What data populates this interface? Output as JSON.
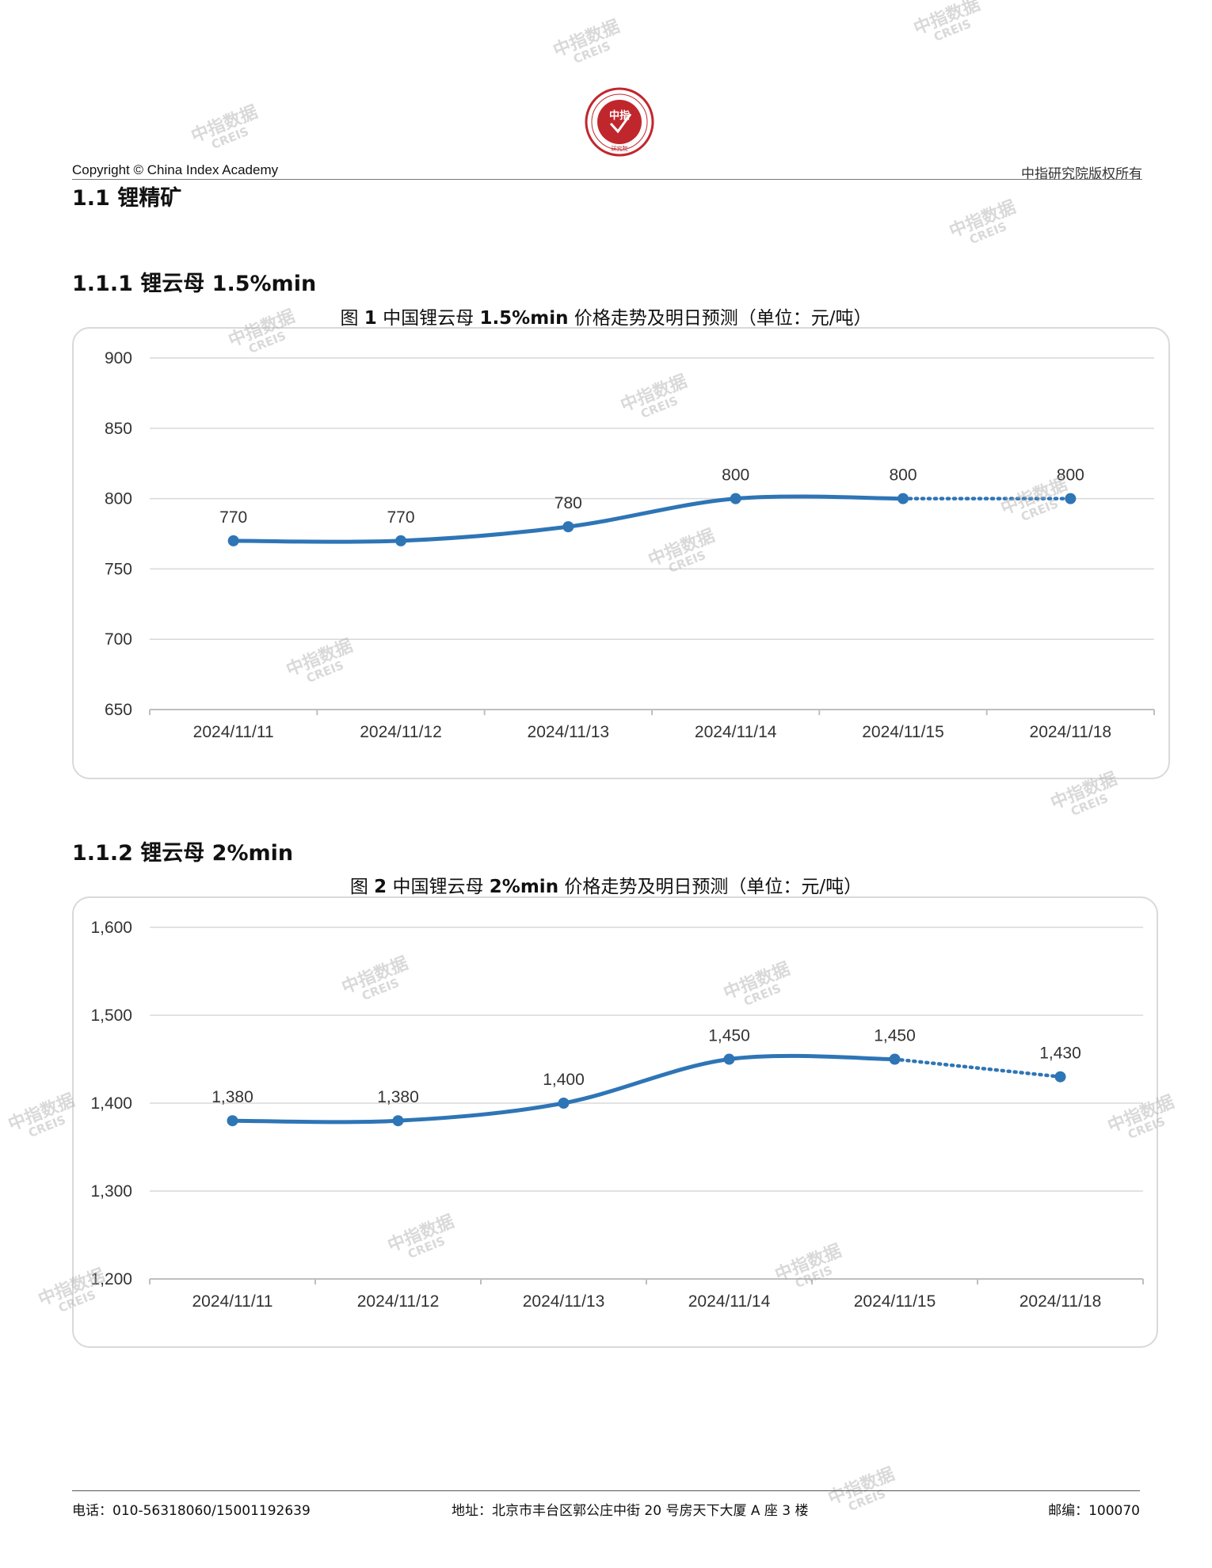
{
  "header": {
    "copyright": "Copyright © China Index Academy",
    "rights": "中指研究院版权所有",
    "logo_text": "CHINA INDEX ACADEMY",
    "logo_center": "中指",
    "logo_bottom": "研究院"
  },
  "section": {
    "title": "1.1 锂精矿"
  },
  "charts": [
    {
      "subsection": "1.1.1 锂云母 1.5%min",
      "title_prefix": "图 ",
      "title_num": "1",
      "title_mid": " 中国锂云母 ",
      "title_bold": "1.5%min",
      "title_rest": " 价格走势及明日预测（单位：元/吨）"
    },
    {
      "subsection": "1.1.2 锂云母 2%min",
      "title_prefix": "图 ",
      "title_num": "2",
      "title_mid": " 中国锂云母 ",
      "title_bold": "2%min",
      "title_rest": " 价格走势及明日预测（单位：元/吨）"
    }
  ],
  "chart_data": [
    {
      "type": "line",
      "title": "图 1 中国锂云母 1.5%min 价格走势及明日预测（单位：元/吨）",
      "categories": [
        "2024/11/11",
        "2024/11/12",
        "2024/11/13",
        "2024/11/14",
        "2024/11/15",
        "2024/11/18"
      ],
      "values": [
        770,
        770,
        780,
        800,
        800,
        800
      ],
      "data_labels": [
        "770",
        "770",
        "780",
        "800",
        "800",
        "800"
      ],
      "forecast_from_index": 4,
      "ylim": [
        650,
        900
      ],
      "yticks": [
        650,
        700,
        750,
        800,
        850,
        900
      ],
      "ytick_labels": [
        "650",
        "700",
        "750",
        "800",
        "850",
        "900"
      ],
      "grid": true,
      "legend": "none",
      "color": "#2e75b6"
    },
    {
      "type": "line",
      "title": "图 2 中国锂云母 2%min 价格走势及明日预测（单位：元/吨）",
      "categories": [
        "2024/11/11",
        "2024/11/12",
        "2024/11/13",
        "2024/11/14",
        "2024/11/15",
        "2024/11/18"
      ],
      "values": [
        1380,
        1380,
        1400,
        1450,
        1450,
        1430
      ],
      "data_labels": [
        "1,380",
        "1,380",
        "1,400",
        "1,450",
        "1,450",
        "1,430"
      ],
      "forecast_from_index": 4,
      "ylim": [
        1200,
        1600
      ],
      "yticks": [
        1200,
        1300,
        1400,
        1500,
        1600
      ],
      "ytick_labels": [
        "1,200",
        "1,300",
        "1,400",
        "1,500",
        "1,600"
      ],
      "grid": true,
      "legend": "none",
      "color": "#2e75b6"
    }
  ],
  "footer": {
    "phone": "电话：010-56318060/15001192639",
    "address": "地址：北京市丰台区郭公庄中街 20 号房天下大厦 A 座 3 楼",
    "postcode": "邮编：100070"
  },
  "watermark": {
    "cn": "中指数据",
    "en": "CREIS"
  }
}
